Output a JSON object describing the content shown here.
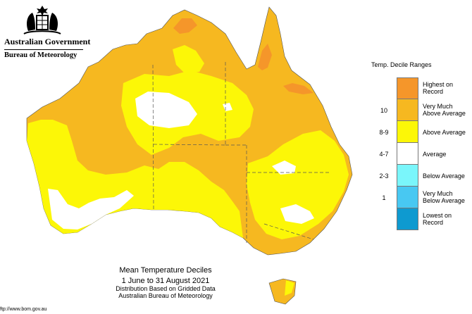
{
  "header": {
    "gov_name": "Australian Government",
    "bureau_name": "Bureau of Meteorology",
    "crest_icon": "coat-of-arms-icon"
  },
  "legend": {
    "title": "Temp. Decile Ranges",
    "items": [
      {
        "range": "",
        "label_line1": "Highest on",
        "label_line2": "Record",
        "color": "#f5962a"
      },
      {
        "range": "10",
        "label_line1": "Very Much",
        "label_line2": "Above Average",
        "color": "#f6b820"
      },
      {
        "range": "8-9",
        "label_line1": "Above Average",
        "label_line2": "",
        "color": "#fcf707"
      },
      {
        "range": "4-7",
        "label_line1": "Average",
        "label_line2": "",
        "color": "#ffffff"
      },
      {
        "range": "2-3",
        "label_line1": "Below Average",
        "label_line2": "",
        "color": "#7af6fb"
      },
      {
        "range": "1",
        "label_line1": "Very Much",
        "label_line2": "Below Average",
        "color": "#48c8f2"
      },
      {
        "range": "",
        "label_line1": "Lowest on",
        "label_line2": "Record",
        "color": "#0e9ad0"
      }
    ]
  },
  "caption": {
    "title": "Mean Temperature Deciles",
    "period": "1 June to 31 August 2021",
    "line1": "Distribution Based on Gridded Data",
    "line2": "Australian Bureau of Meteorology"
  },
  "footer": {
    "url": "ftp://www.bom.gov.au"
  },
  "colors": {
    "highest": "#f5962a",
    "very_much_above": "#f6b820",
    "above": "#fcf707",
    "average": "#ffffff",
    "border_line": "#555555"
  }
}
